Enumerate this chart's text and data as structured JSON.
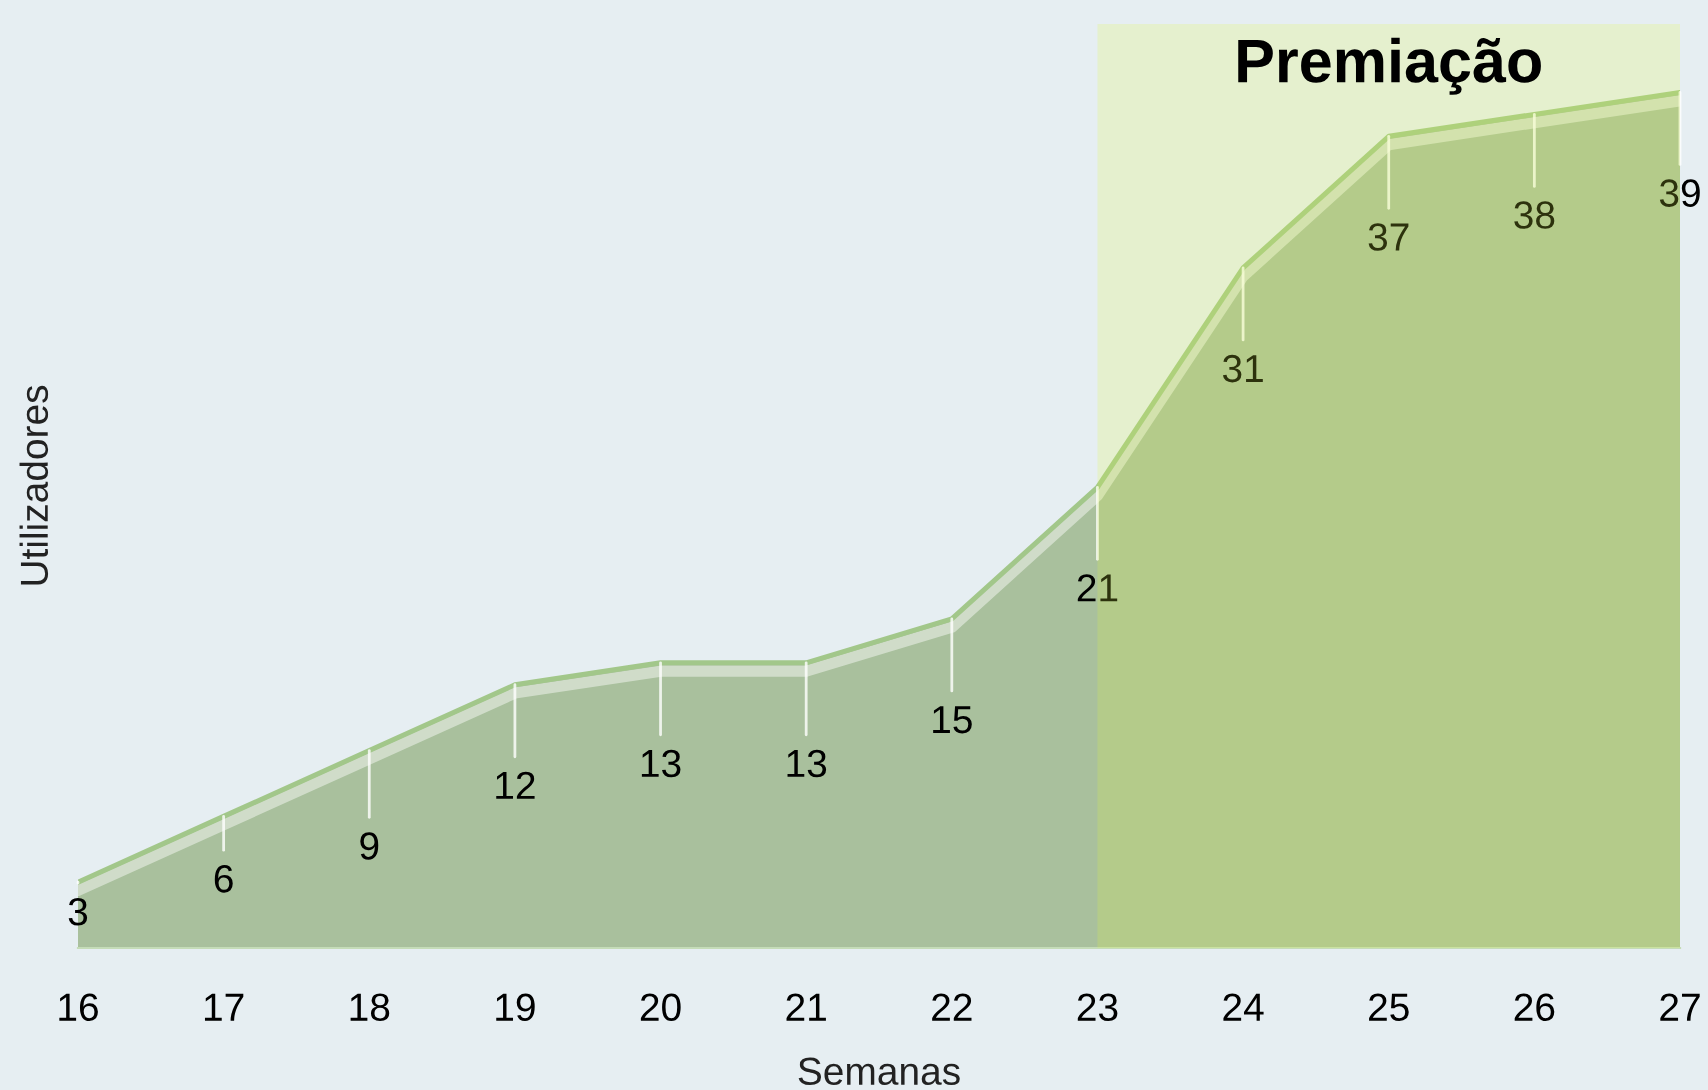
{
  "chart_data": {
    "type": "area",
    "xlabel": "Semanas",
    "ylabel": "Utilizadores",
    "x": [
      16,
      17,
      18,
      19,
      20,
      21,
      22,
      23,
      24,
      25,
      26,
      27
    ],
    "values": [
      3,
      6,
      9,
      12,
      13,
      13,
      15,
      21,
      31,
      37,
      38,
      39
    ],
    "color": "#a9c09d",
    "xlim": [
      16,
      27
    ],
    "xticks": [
      16,
      17,
      18,
      19,
      20,
      21,
      22,
      23,
      24,
      25,
      26,
      27
    ],
    "bands": [
      {
        "axis": "x",
        "from": 23,
        "to": 27,
        "label": "Premiação",
        "color": "#e1f840"
      }
    ],
    "data_labels": true,
    "tick_labels": "x"
  }
}
